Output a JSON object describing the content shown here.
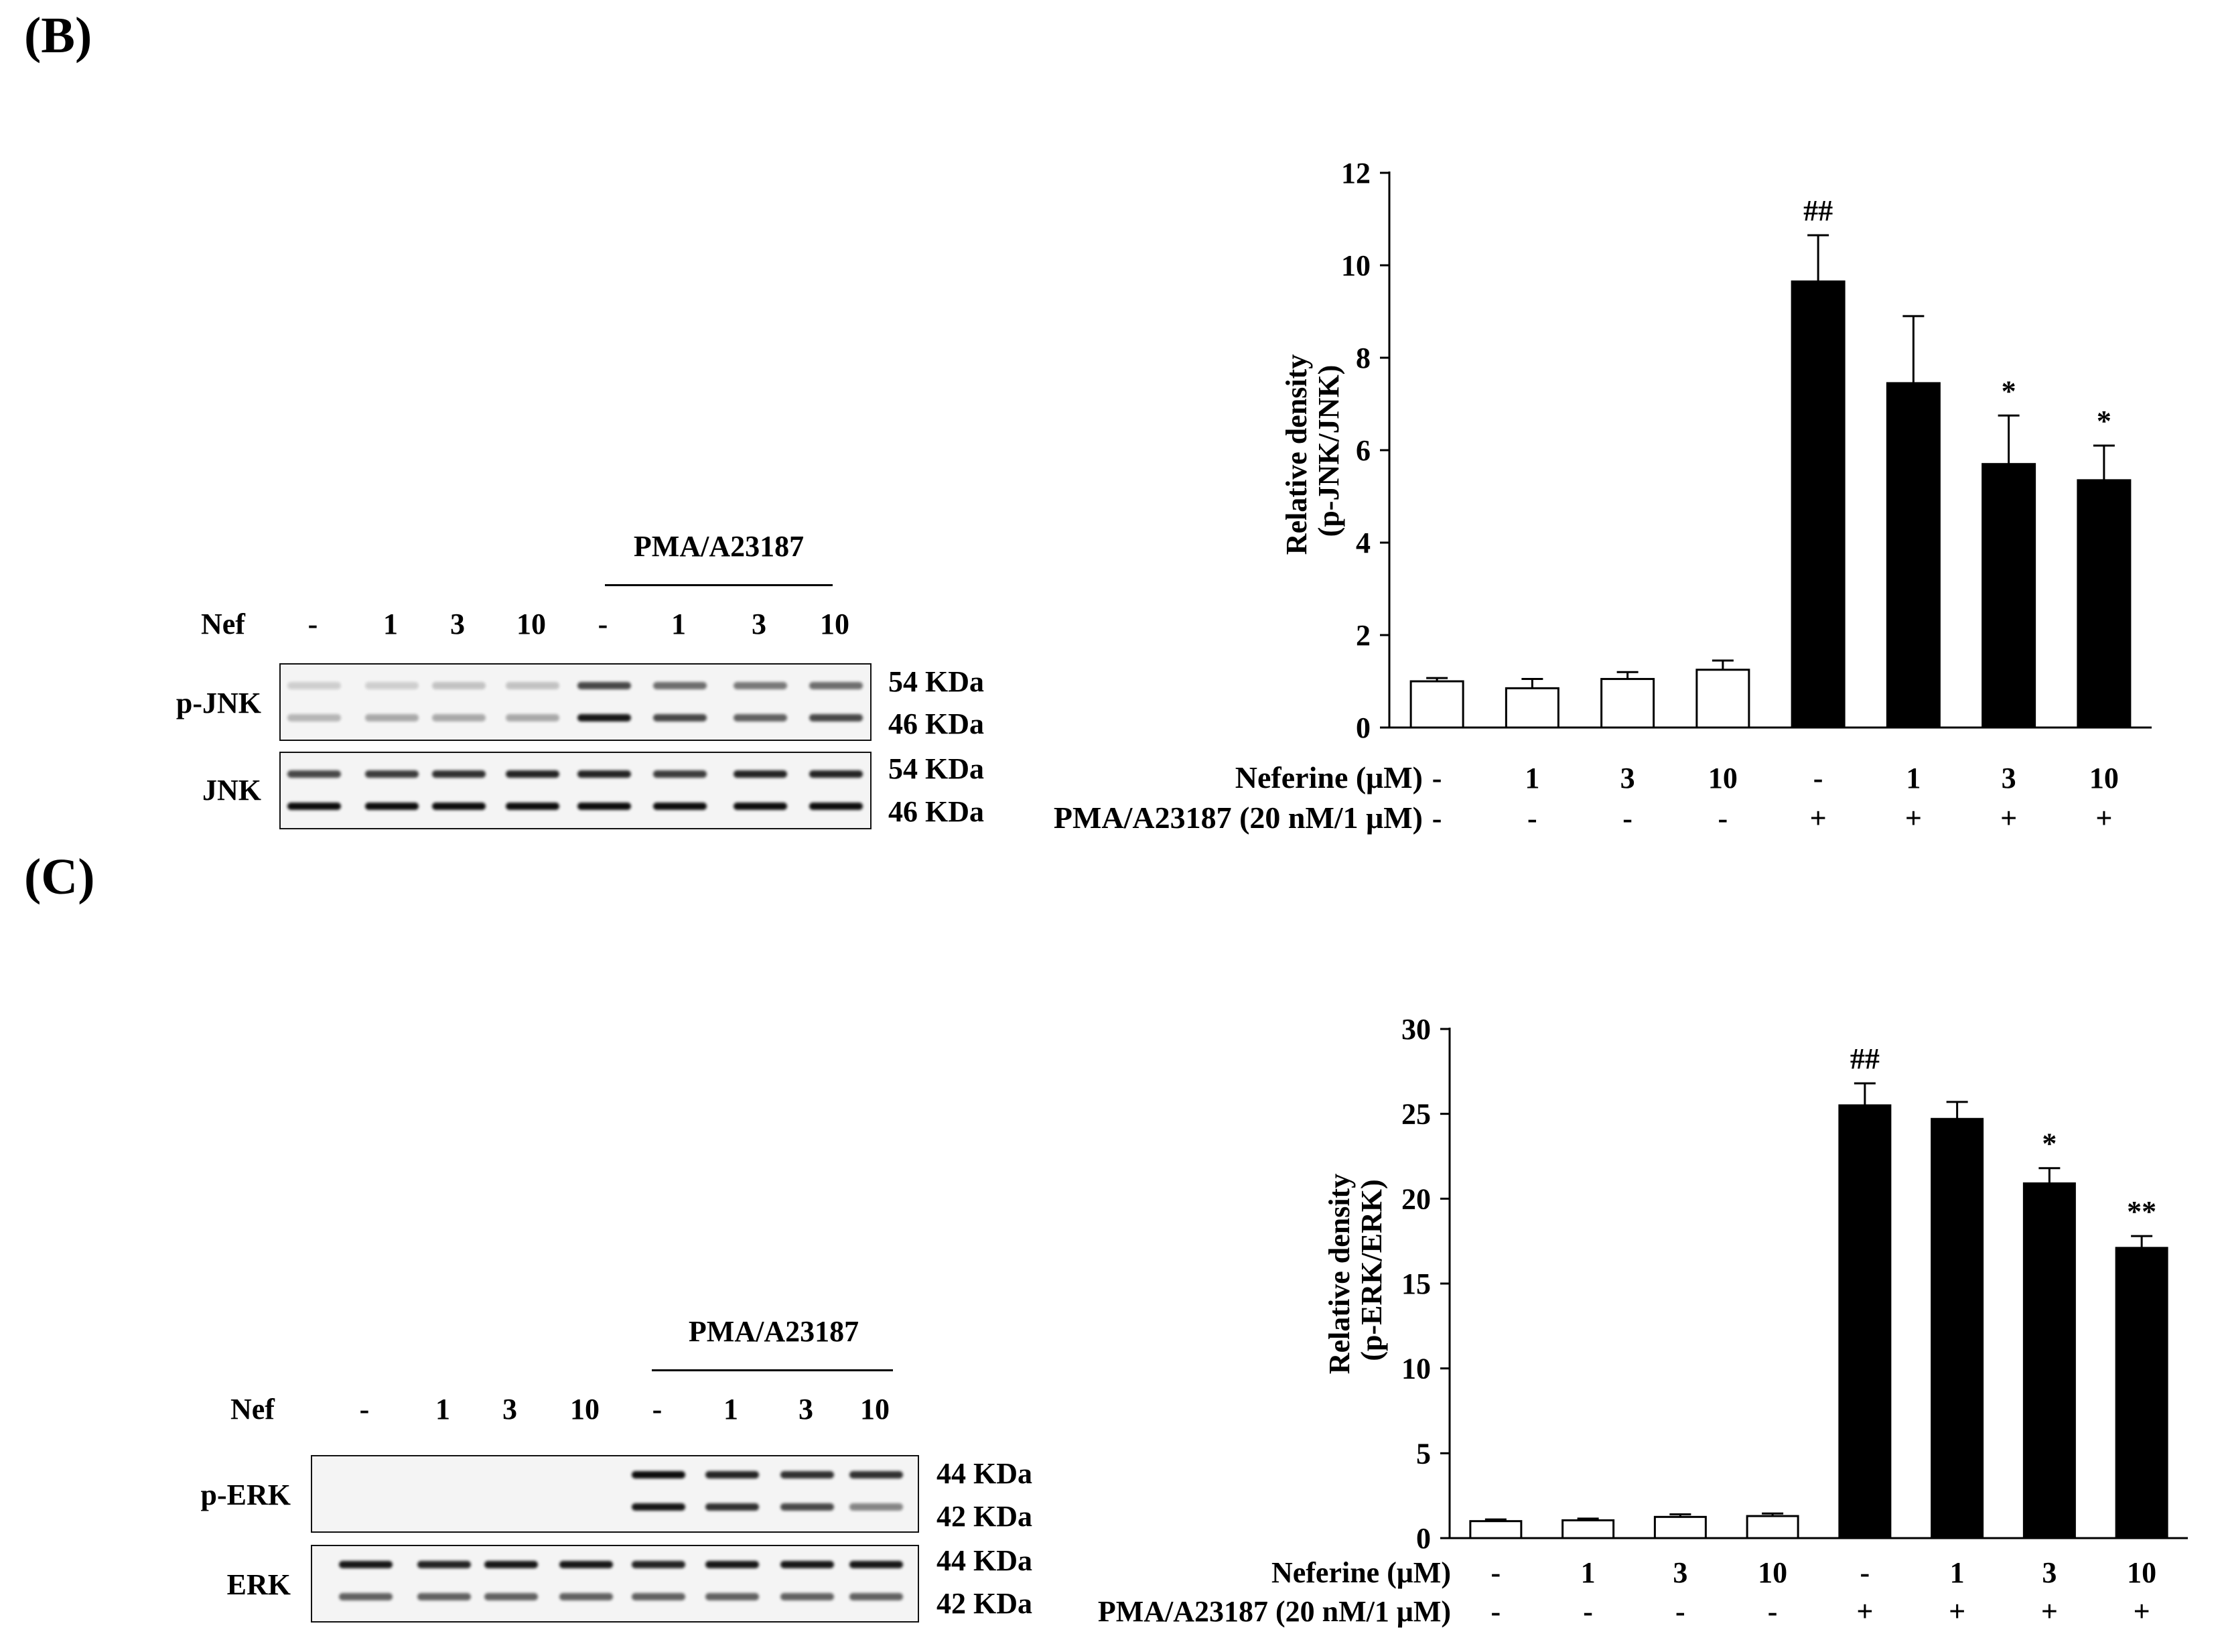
{
  "panels": [
    {
      "label": "(B)",
      "blot": {
        "group_label": "PMA/A23187",
        "row_label": "Nef",
        "lanes": [
          "-",
          "1",
          "3",
          "10",
          "-",
          "1",
          "3",
          "10"
        ],
        "rows": [
          {
            "name": "p-JNK",
            "markers": [
              "54 KDa",
              "46 KDa"
            ],
            "bands": [
              [
                0.15,
                0.15,
                0.2,
                0.2,
                0.7,
                0.55,
                0.5,
                0.55
              ],
              [
                0.25,
                0.3,
                0.3,
                0.3,
                0.9,
                0.7,
                0.6,
                0.7
              ]
            ]
          },
          {
            "name": "JNK",
            "markers": [
              "54 KDa",
              "46 KDa"
            ],
            "bands": [
              [
                0.7,
                0.75,
                0.8,
                0.85,
                0.85,
                0.75,
                0.85,
                0.85
              ],
              [
                0.95,
                0.95,
                0.95,
                0.95,
                0.95,
                0.95,
                0.95,
                0.95
              ]
            ]
          }
        ]
      },
      "chart_data": {
        "type": "bar",
        "ylabel": [
          "Relative density",
          "(p-JNK/JNK)"
        ],
        "ylim": [
          0,
          12
        ],
        "yticks": [
          0,
          2,
          4,
          6,
          8,
          10,
          12
        ],
        "row1_label": "Neferine (μM)",
        "row2_label": "PMA/A23187 (20 nM/1 μM)",
        "categories": [
          "-",
          "1",
          "3",
          "10",
          "-",
          "1",
          "3",
          "10"
        ],
        "stimulus": [
          "-",
          "-",
          "-",
          "-",
          "+",
          "+",
          "+",
          "+"
        ],
        "values": [
          1.0,
          0.85,
          1.05,
          1.25,
          9.65,
          7.45,
          5.7,
          5.35
        ],
        "errors": [
          0.07,
          0.2,
          0.15,
          0.2,
          1.0,
          1.45,
          1.05,
          0.75
        ],
        "significance": [
          "",
          "",
          "",
          "",
          "##",
          "",
          "*",
          "*"
        ],
        "fill": [
          "white",
          "white",
          "white",
          "white",
          "black",
          "black",
          "black",
          "black"
        ]
      }
    },
    {
      "label": "(C)",
      "blot": {
        "group_label": "PMA/A23187",
        "row_label": "Nef",
        "lanes": [
          "-",
          "1",
          "3",
          "10",
          "-",
          "1",
          "3",
          "10"
        ],
        "rows": [
          {
            "name": "p-ERK",
            "markers": [
              "44 KDa",
              "42 KDa"
            ],
            "bands": [
              [
                0,
                0,
                0,
                0,
                0.95,
                0.85,
                0.8,
                0.8
              ],
              [
                0,
                0,
                0,
                0,
                0.9,
                0.8,
                0.7,
                0.45
              ]
            ]
          },
          {
            "name": "ERK",
            "markers": [
              "44 KDa",
              "42 KDa"
            ],
            "bands": [
              [
                0.9,
                0.85,
                0.9,
                0.9,
                0.85,
                0.9,
                0.9,
                0.9
              ],
              [
                0.6,
                0.6,
                0.6,
                0.6,
                0.6,
                0.6,
                0.6,
                0.6
              ]
            ]
          }
        ]
      },
      "chart_data": {
        "type": "bar",
        "ylabel": [
          "Relative density",
          "(p-ERK/ERK)"
        ],
        "ylim": [
          0,
          30
        ],
        "yticks": [
          0,
          5,
          10,
          15,
          20,
          25,
          30
        ],
        "row1_label": "Neferine (μM)",
        "row2_label": "PMA/A23187 (20 nM/1 μM)",
        "categories": [
          "-",
          "1",
          "3",
          "10",
          "-",
          "1",
          "3",
          "10"
        ],
        "stimulus": [
          "-",
          "-",
          "-",
          "-",
          "+",
          "+",
          "+",
          "+"
        ],
        "values": [
          1.0,
          1.05,
          1.25,
          1.3,
          25.5,
          24.7,
          20.9,
          17.1
        ],
        "errors": [
          0.1,
          0.1,
          0.15,
          0.15,
          1.3,
          1.0,
          0.9,
          0.7
        ],
        "significance": [
          "",
          "",
          "",
          "",
          "##",
          "",
          "*",
          "**"
        ],
        "fill": [
          "white",
          "white",
          "white",
          "white",
          "black",
          "black",
          "black",
          "black"
        ]
      }
    }
  ]
}
